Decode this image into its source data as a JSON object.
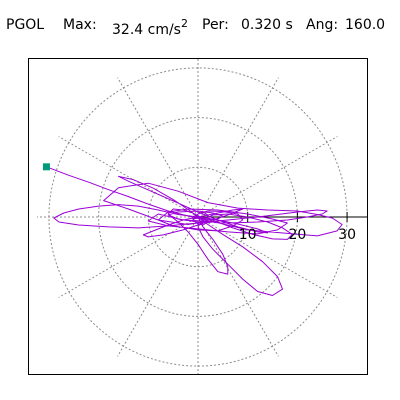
{
  "header": {
    "station": "PGOL",
    "max_label": "Max:",
    "max_value": "32.4 cm/s",
    "max_exp": "2",
    "per_label": "Per:",
    "per_value": "0.320 s",
    "ang_label": "Ang:",
    "ang_value": "160.0"
  },
  "chart_data": {
    "type": "scatter",
    "title": "",
    "xlabel": "",
    "ylabel": "",
    "rlim": [
      0,
      32.4
    ],
    "grid": true,
    "ring_values": [
      10,
      20,
      30
    ],
    "tick_labels": [
      "10",
      "20",
      "30"
    ],
    "spoke_angles_deg": [
      0,
      30,
      60,
      90,
      120,
      150,
      180,
      210,
      240,
      270,
      300,
      330
    ],
    "marker": {
      "type": "square",
      "color": "#009a7a",
      "x": -30.5,
      "y": 10.1
    },
    "line_color": "#9b00d6",
    "grid_color": "#8c8c8c",
    "series": [
      {
        "x": [
          -30.5,
          -26,
          -22,
          -18,
          -14,
          -10,
          -6,
          -2,
          0.5,
          1.5,
          -2,
          -8,
          -14,
          -19,
          -16,
          -10,
          -4,
          2,
          8,
          14,
          20,
          24,
          27,
          29,
          28,
          24,
          18,
          10,
          3,
          -3,
          -8,
          -10,
          -6,
          0,
          6,
          12,
          16,
          18,
          15,
          10,
          4,
          -2,
          -6,
          -8,
          -5,
          0,
          4,
          7,
          9,
          8,
          5,
          2,
          0,
          -1,
          0,
          1,
          2,
          2,
          1,
          0,
          -1,
          -1,
          0,
          1
        ],
        "y": [
          10.1,
          8.4,
          7.0,
          5.5,
          4.1,
          2.6,
          1.2,
          0.2,
          -0.4,
          -0.9,
          -1.5,
          -0.6,
          1.6,
          3.3,
          5.9,
          6.8,
          5.2,
          2.9,
          1.8,
          1.4,
          1.2,
          0.5,
          -0.2,
          -1.5,
          -2.8,
          -3.8,
          -3.3,
          -2.6,
          -0.9,
          -0.6,
          0.6,
          -0.8,
          -1.8,
          -2.4,
          -3.0,
          -3.4,
          -2.6,
          -1.2,
          -0.4,
          0.6,
          1.4,
          1.6,
          1.0,
          -0.6,
          -1.8,
          -2.6,
          -2.8,
          -1.8,
          -0.6,
          0.6,
          1.1,
          1.2,
          0.6,
          -0.6,
          -1.4,
          -1.6,
          -1.0,
          0.4,
          1.0,
          0.6,
          0.0,
          -0.4,
          -0.2,
          0.0
        ]
      },
      {
        "x": [
          0,
          -4,
          -8,
          -12,
          -16,
          -20,
          -24,
          -27,
          -29,
          -28,
          -24,
          -18,
          -12,
          -6,
          0,
          6,
          12,
          16,
          20,
          24,
          26,
          25,
          22,
          18,
          12,
          6,
          0,
          -4,
          -6,
          -4,
          0,
          3,
          5,
          4,
          2,
          0
        ],
        "y": [
          0,
          0.5,
          1.4,
          2.2,
          2.5,
          2.2,
          1.6,
          0.8,
          -0.2,
          -1.0,
          -1.6,
          -2.0,
          -2.2,
          -1.8,
          -1.2,
          -0.6,
          0.0,
          0.5,
          1.0,
          1.4,
          1.2,
          0.6,
          0.0,
          -0.6,
          -1.0,
          -1.2,
          -1.0,
          -0.4,
          0.4,
          1.0,
          1.2,
          0.8,
          0.2,
          -0.4,
          -0.6,
          0.0
        ]
      },
      {
        "x": [
          0,
          2,
          5,
          9,
          13,
          16,
          17,
          15,
          12,
          9,
          6,
          3,
          1,
          0,
          1,
          3,
          6,
          10,
          14,
          17,
          19,
          18,
          15,
          11,
          7,
          4,
          2,
          0
        ],
        "y": [
          0,
          -1.5,
          -3.5,
          -6.0,
          -9.0,
          -12.0,
          -14.5,
          -15.8,
          -15.0,
          -12.5,
          -9.5,
          -6.5,
          -4.0,
          -2.0,
          -0.5,
          0.4,
          0.6,
          0.0,
          -1.0,
          -2.2,
          -3.5,
          -4.5,
          -4.4,
          -3.5,
          -2.2,
          -1.0,
          -0.3,
          0.0
        ]
      },
      {
        "x": [
          0,
          -2,
          -5,
          -9,
          -13,
          -16,
          -14,
          -9,
          -4,
          0,
          4,
          8,
          12,
          14,
          12,
          8,
          4,
          1,
          0
        ],
        "y": [
          0,
          1.5,
          3.5,
          5.8,
          7.5,
          8.2,
          7.2,
          5.0,
          2.8,
          1.0,
          -0.6,
          -2.0,
          -3.0,
          -3.2,
          -2.4,
          -1.4,
          -0.6,
          -0.1,
          0.0
        ]
      },
      {
        "x": [
          0,
          1,
          3,
          5,
          6,
          6,
          4,
          2,
          0,
          -2,
          -4,
          -6,
          -5,
          -3,
          -1,
          0,
          1,
          2,
          1,
          0
        ],
        "y": [
          0,
          -2,
          -4.5,
          -7.5,
          -10.0,
          -11.5,
          -11.0,
          -8.5,
          -5.5,
          -3.0,
          -1.0,
          0.6,
          1.6,
          1.4,
          0.8,
          0.2,
          -0.4,
          -0.8,
          -0.4,
          0.0
        ]
      },
      {
        "x": [
          0,
          -3,
          -6,
          -9,
          -11,
          -10,
          -7,
          -3,
          0,
          3,
          6,
          8,
          9,
          7,
          4,
          1,
          0
        ],
        "y": [
          0,
          -0.6,
          -1.6,
          -2.8,
          -3.6,
          -4.0,
          -3.6,
          -2.6,
          -1.6,
          -0.6,
          0.4,
          1.2,
          1.6,
          1.4,
          0.8,
          0.2,
          0.0
        ]
      }
    ]
  }
}
